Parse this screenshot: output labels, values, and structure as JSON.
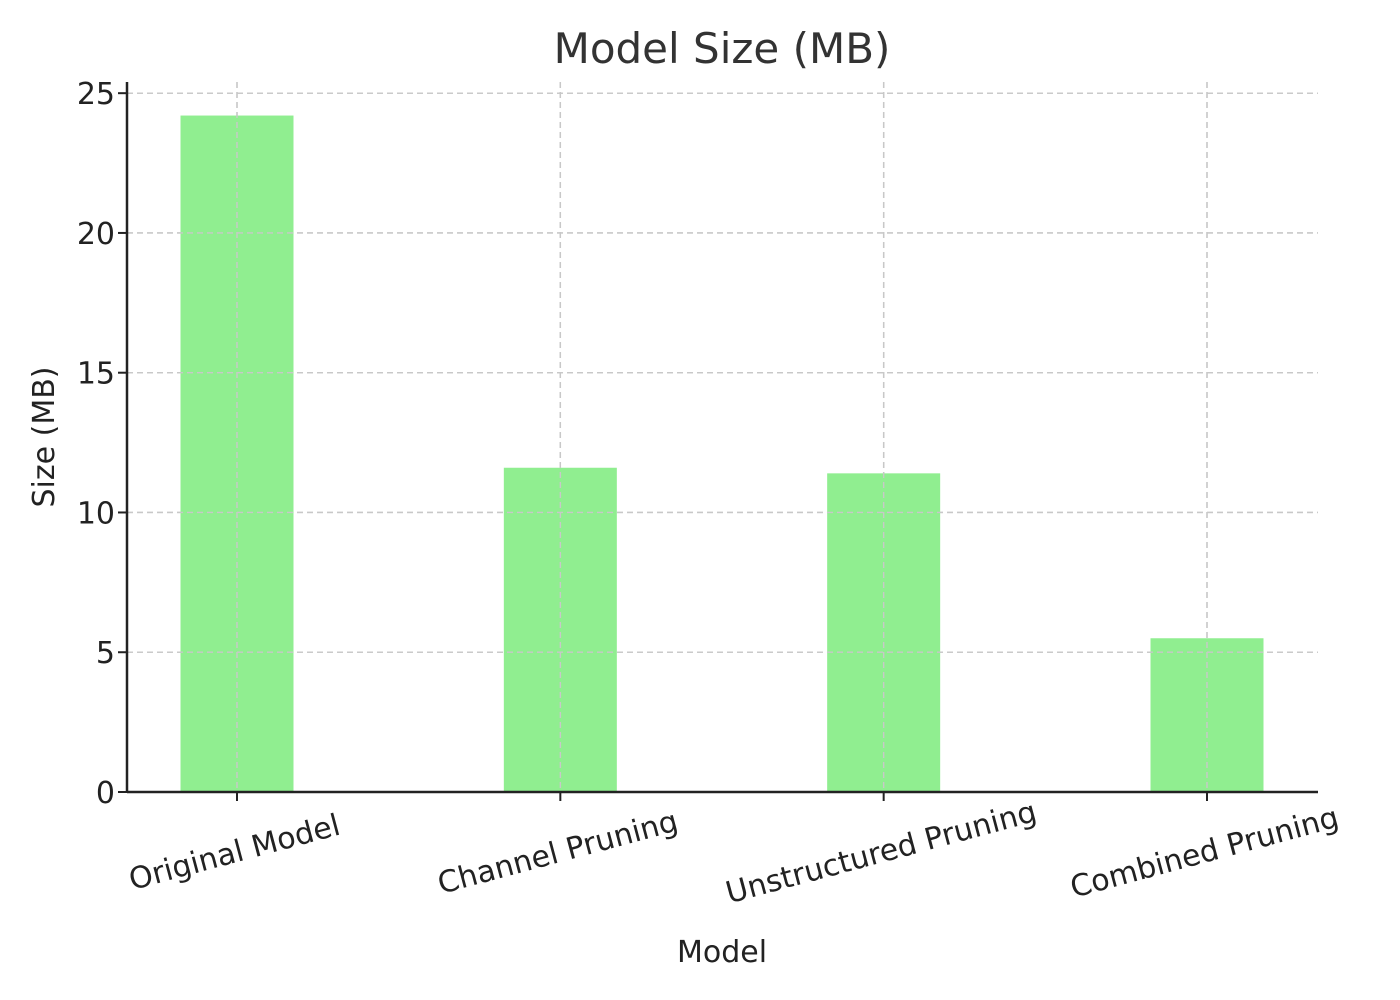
{
  "chart_data": {
    "type": "bar",
    "title": "Model Size (MB)",
    "xlabel": "Model",
    "ylabel": "Size (MB)",
    "categories": [
      "Original Model",
      "Channel Pruning",
      "Unstructured Pruning",
      "Combined Pruning"
    ],
    "values": [
      24.2,
      11.6,
      11.4,
      5.5
    ],
    "ylim": [
      0,
      25.4
    ],
    "yticks": [
      0,
      5,
      10,
      15,
      20,
      25
    ],
    "grid": true,
    "bar_color": "#90ee90",
    "xtick_rotation_deg": -15
  }
}
